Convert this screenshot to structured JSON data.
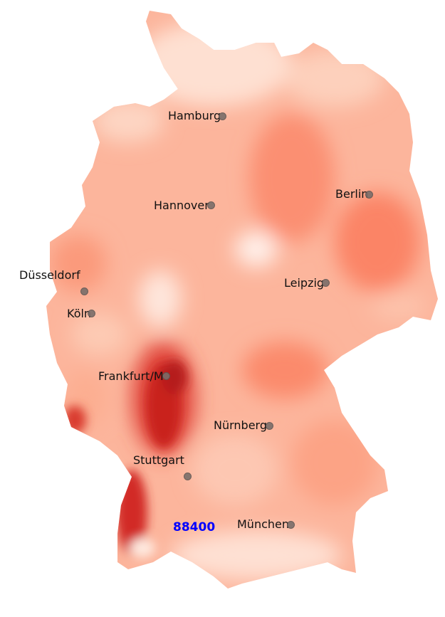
{
  "map": {
    "colormap": "Reds",
    "colors": {
      "light": "#fee5d9",
      "mid": "#fcae91",
      "strong": "#fb6a4a",
      "dark": "#cb181d",
      "darkest": "#a50f15",
      "city_marker": "#7a6e6a",
      "highlight_label": "#0000ff"
    },
    "cities": [
      {
        "name": "Hamburg"
      },
      {
        "name": "Hannover"
      },
      {
        "name": "Berlin"
      },
      {
        "name": "Düsseldorf"
      },
      {
        "name": "Köln"
      },
      {
        "name": "Leipzig"
      },
      {
        "name": "Frankfurt/M"
      },
      {
        "name": "Nürnberg"
      },
      {
        "name": "Stuttgart"
      },
      {
        "name": "München"
      }
    ],
    "highlight_postcode": "88400"
  }
}
